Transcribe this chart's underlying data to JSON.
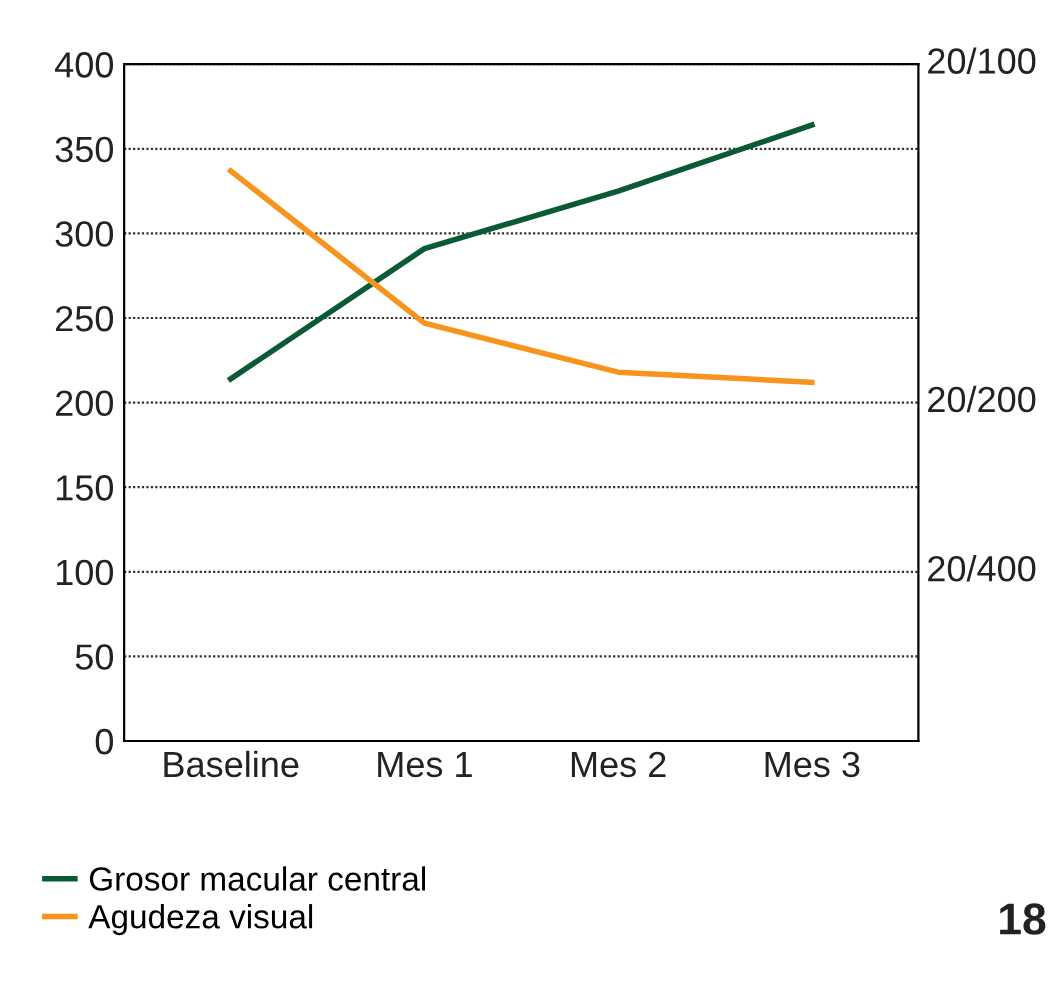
{
  "chart_data": {
    "type": "line",
    "categories": [
      "Baseline",
      "Mes 1",
      "Mes 2",
      "Mes 3"
    ],
    "series": [
      {
        "name": "Grosor macular central",
        "color": "#0b5a36",
        "values": [
          214,
          291,
          325,
          364
        ]
      },
      {
        "name": "Agudeza visual",
        "color": "#f7941d",
        "values": [
          337,
          247,
          218,
          212
        ]
      }
    ],
    "ylim": [
      0,
      400
    ],
    "yticks": [
      0,
      50,
      100,
      150,
      200,
      250,
      300,
      350,
      400
    ],
    "grid": "y",
    "legend": "bottom left",
    "marker": "none",
    "line_style": "solid",
    "annotations": [
      "20/100",
      "20/200",
      "20/400",
      "18"
    ]
  }
}
